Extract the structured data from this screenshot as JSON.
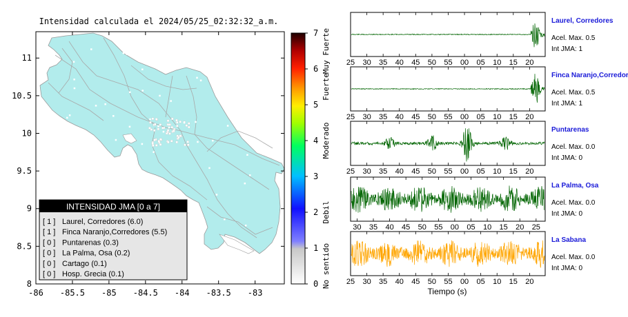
{
  "map": {
    "title": "Intensidad calculada el 2024/05/25_02:32:32_a.m.",
    "x_ticks": [
      "-86",
      "-85.5",
      "-85",
      "-84.5",
      "-84",
      "-83.5",
      "-83"
    ],
    "y_ticks": [
      "8",
      "8.5",
      "9",
      "9.5",
      "10",
      "10.5",
      "11"
    ],
    "xlim": [
      -86,
      -82.6
    ],
    "ylim": [
      8,
      11.35
    ],
    "land_color": "#b2ecec",
    "legend": {
      "title": "INTENSIDAD JMA [0 a 7]",
      "items": [
        {
          "level": "[ 1 ]",
          "label": "Laurel, Corredores (6.0)"
        },
        {
          "level": "[ 1 ]",
          "label": "Finca Naranjo,Corredores (5.5)"
        },
        {
          "level": "[ 0 ]",
          "label": "Puntarenas (0.3)"
        },
        {
          "level": "[ 0 ]",
          "label": "La Palma, Osa (0.2)"
        },
        {
          "level": "[ 0 ]",
          "label": "Cartago (0.1)"
        },
        {
          "level": "[ 0 ]",
          "label": "Hosp. Grecia (0.1)"
        }
      ]
    }
  },
  "colorbar": {
    "ticks": [
      "0",
      "1",
      "2",
      "3",
      "4",
      "5",
      "6",
      "7"
    ],
    "range": [
      0,
      7
    ],
    "bands": [
      {
        "label": "No sentido",
        "center": 0.5
      },
      {
        "label": "Debil",
        "center": 2
      },
      {
        "label": "Moderado",
        "center": 4
      },
      {
        "label": "Fuerte",
        "center": 5.5
      },
      {
        "label": "Muy Fuerte",
        "center": 6.5
      }
    ]
  },
  "traces": [
    {
      "station": "Laurel, Corredores",
      "acel": "Acel. Max. 0.5",
      "int": "Int JMA: 1",
      "ticks": [
        "25",
        "30",
        "35",
        "40",
        "45",
        "50",
        "55",
        "00",
        "05",
        "10",
        "15",
        "20"
      ],
      "tick_start": 25,
      "color": "#006400",
      "type": "late-burst"
    },
    {
      "station": "Finca Naranjo,Corredores",
      "acel": "Acel. Max. 0.5",
      "int": "Int JMA: 1",
      "ticks": [
        "25",
        "30",
        "35",
        "40",
        "45",
        "50",
        "55",
        "00",
        "05",
        "10",
        "15",
        "20"
      ],
      "tick_start": 25,
      "color": "#006400",
      "type": "late-burst"
    },
    {
      "station": "Puntarenas",
      "acel": "Acel. Max. 0.0",
      "int": "Int JMA: 0",
      "ticks": [
        "25",
        "30",
        "35",
        "40",
        "45",
        "50",
        "55",
        "00",
        "05",
        "10",
        "15",
        "20"
      ],
      "tick_start": 25,
      "color": "#006400",
      "type": "bursts"
    },
    {
      "station": "La Palma, Osa",
      "acel": "Acel. Max. 0.0",
      "int": "Int JMA: 0",
      "ticks": [
        "30",
        "35",
        "40",
        "45",
        "50",
        "55",
        "00",
        "05",
        "10",
        "15",
        "20",
        "25"
      ],
      "tick_start": 28,
      "color": "#006400",
      "type": "noise"
    },
    {
      "station": "La Sabana",
      "acel": "Acel. Max. 0.0",
      "int": "Int JMA: 0",
      "ticks": [
        "25",
        "30",
        "35",
        "40",
        "45",
        "50",
        "55",
        "00",
        "05",
        "10",
        "15",
        "20"
      ],
      "tick_start": 25,
      "color": "#ffa500",
      "type": "noise"
    }
  ],
  "xlabel": "Tiempo (s)",
  "chart_data": [
    {
      "type": "heatmap",
      "title": "Intensidad calculada el 2024/05/25_02:32:32_a.m.",
      "xlim": [
        -86,
        -82.6
      ],
      "ylim": [
        8,
        11.35
      ],
      "x_ticks": [
        -86,
        -85.5,
        -85,
        -84.5,
        -84,
        -83.5,
        -83
      ],
      "y_ticks": [
        8,
        8.5,
        9,
        9.5,
        10,
        10.5,
        11
      ],
      "colorbar_range": [
        0,
        7
      ],
      "legend_placement": "bottom-left",
      "entries": [
        {
          "station": "Laurel, Corredores",
          "level": 1,
          "value": 6.0
        },
        {
          "station": "Finca Naranjo,Corredores",
          "level": 1,
          "value": 5.5
        },
        {
          "station": "Puntarenas",
          "level": 0,
          "value": 0.3
        },
        {
          "station": "La Palma, Osa",
          "level": 0,
          "value": 0.2
        },
        {
          "station": "Cartago",
          "level": 0,
          "value": 0.1
        },
        {
          "station": "Hosp. Grecia",
          "level": 0,
          "value": 0.1
        }
      ]
    },
    {
      "type": "line",
      "xlabel": "Tiempo (s)",
      "series": [
        {
          "station": "Laurel, Corredores",
          "acel_max": 0.5,
          "int_jma": 1
        },
        {
          "station": "Finca Naranjo,Corredores",
          "acel_max": 0.5,
          "int_jma": 1
        },
        {
          "station": "Puntarenas",
          "acel_max": 0.0,
          "int_jma": 0
        },
        {
          "station": "La Palma, Osa",
          "acel_max": 0.0,
          "int_jma": 0
        },
        {
          "station": "La Sabana",
          "acel_max": 0.0,
          "int_jma": 0
        }
      ]
    }
  ]
}
